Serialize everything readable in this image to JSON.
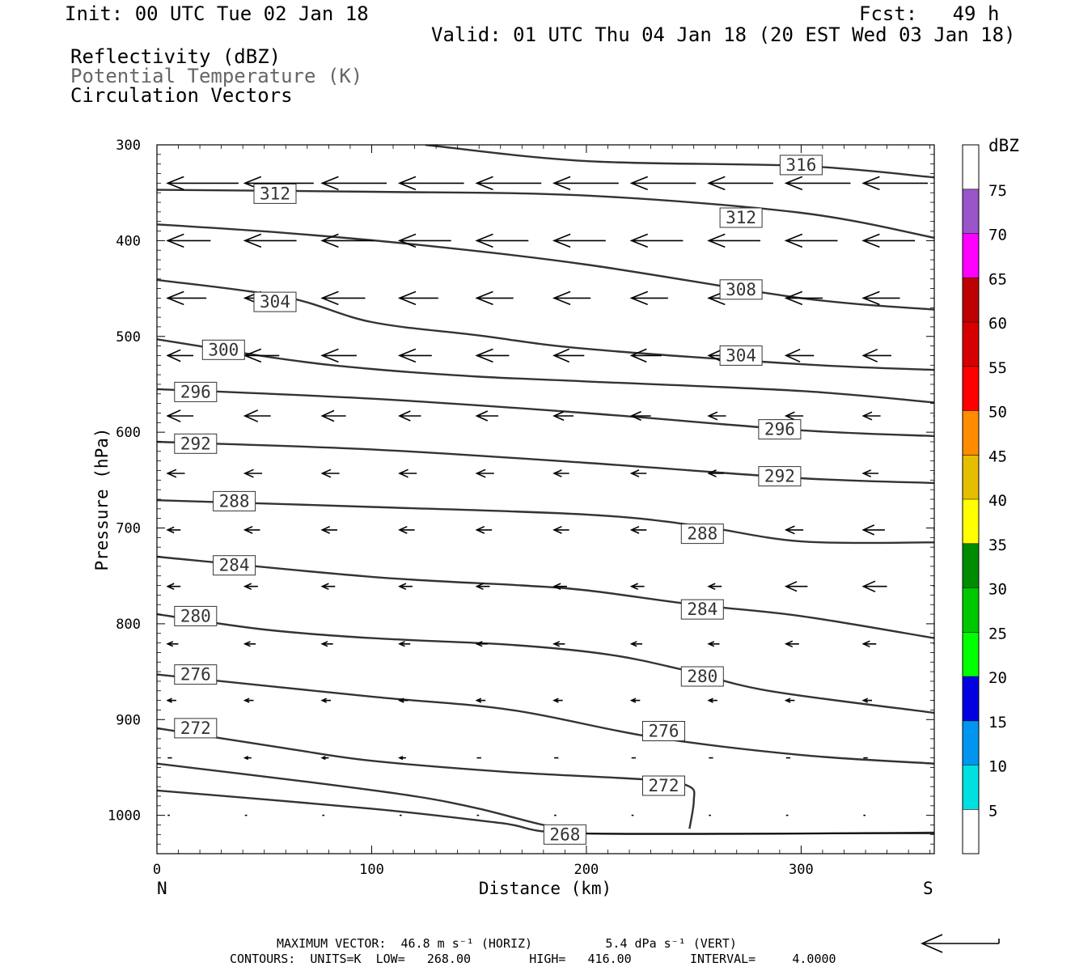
{
  "header": {
    "init": "Init: 00 UTC Tue 02 Jan 18",
    "fcst": "Fcst:   49 h",
    "valid": "Valid: 01 UTC Thu 04 Jan 18 (20 EST Wed 03 Jan 18)",
    "field1": "Reflectivity (dBZ)",
    "field2": "Potential Temperature (K)",
    "field3": "Circulation Vectors"
  },
  "footer": {
    "maxvec": "MAXIMUM VECTOR:  46.8 m s⁻¹ (HORIZ)          5.4 dPa s⁻¹ (VERT)",
    "contours": "CONTOURS:  UNITS=K  LOW=   268.00        HIGH=   416.00        INTERVAL=     4.0000"
  },
  "chart_data": {
    "type": "line",
    "title": "",
    "xlabel": "Distance (km)",
    "ylabel": "Pressure (hPa)",
    "xlim": [
      0,
      362
    ],
    "ylim": [
      300,
      1040
    ],
    "x_ticks": [
      0,
      100,
      200,
      300
    ],
    "y_ticks": [
      300,
      400,
      500,
      600,
      700,
      800,
      900,
      1000
    ],
    "x_end_labels": {
      "left": "N",
      "right": "S"
    },
    "colorbar": {
      "title": "dBZ",
      "levels": [
        5,
        10,
        15,
        20,
        25,
        30,
        35,
        40,
        45,
        50,
        55,
        60,
        65,
        70,
        75
      ],
      "colors": [
        "#ffffff",
        "#00e0e0",
        "#0096f0",
        "#0000e0",
        "#00ff00",
        "#00c800",
        "#008c00",
        "#ffff00",
        "#e6be00",
        "#ff8c00",
        "#ff0000",
        "#d70000",
        "#bf0000",
        "#ff00ff",
        "#9955c9",
        "#ffffff"
      ]
    },
    "contour_color": "#333333",
    "series": [
      {
        "level": 316,
        "points": [
          [
            125,
            300
          ],
          [
            200,
            317
          ],
          [
            300,
            322
          ],
          [
            362,
            334
          ]
        ],
        "label": "316",
        "label_at": [
          300,
          321
        ]
      },
      {
        "level": 312,
        "points": [
          [
            0,
            347
          ],
          [
            100,
            349
          ],
          [
            200,
            353
          ],
          [
            300,
            371
          ],
          [
            362,
            397
          ]
        ],
        "label": "312",
        "label_at": [
          272,
          376
        ]
      },
      {
        "level": 308,
        "points": [
          [
            0,
            383
          ],
          [
            60,
            392
          ],
          [
            120,
            404
          ],
          [
            200,
            425
          ],
          [
            300,
            460
          ],
          [
            362,
            472
          ]
        ],
        "label": "308",
        "label_at": [
          272,
          451
        ]
      },
      {
        "level": 304,
        "points": [
          [
            0,
            441
          ],
          [
            60,
            459
          ],
          [
            100,
            485
          ],
          [
            150,
            499
          ],
          [
            200,
            513
          ],
          [
            300,
            529
          ],
          [
            362,
            535
          ]
        ],
        "label": "304",
        "label_at": [
          272,
          520
        ]
      },
      {
        "level": 300,
        "points": [
          [
            0,
            503
          ],
          [
            60,
            524
          ],
          [
            100,
            534
          ],
          [
            150,
            542
          ],
          [
            200,
            547
          ],
          [
            300,
            557
          ],
          [
            362,
            569
          ]
        ]
      },
      {
        "level": 296,
        "points": [
          [
            0,
            555
          ],
          [
            100,
            565
          ],
          [
            200,
            580
          ],
          [
            300,
            598
          ],
          [
            362,
            604
          ]
        ],
        "label": "296",
        "label_at": [
          290,
          597
        ]
      },
      {
        "level": 292,
        "points": [
          [
            0,
            610
          ],
          [
            100,
            618
          ],
          [
            200,
            632
          ],
          [
            300,
            648
          ],
          [
            362,
            653
          ]
        ],
        "label": "292",
        "label_at": [
          290,
          646
        ]
      },
      {
        "level": 288,
        "points": [
          [
            0,
            671
          ],
          [
            100,
            678
          ],
          [
            200,
            686
          ],
          [
            250,
            697
          ],
          [
            300,
            714
          ],
          [
            362,
            715
          ]
        ],
        "label": "288",
        "label_at": [
          254,
          706
        ]
      },
      {
        "level": 284,
        "points": [
          [
            0,
            730
          ],
          [
            100,
            751
          ],
          [
            170,
            760
          ],
          [
            200,
            765
          ],
          [
            250,
            780
          ],
          [
            300,
            792
          ],
          [
            362,
            815
          ]
        ],
        "label": "284",
        "label_at": [
          254,
          785
        ]
      },
      {
        "level": 280,
        "points": [
          [
            0,
            790
          ],
          [
            50,
            806
          ],
          [
            100,
            815
          ],
          [
            165,
            822
          ],
          [
            210,
            832
          ],
          [
            245,
            848
          ],
          [
            285,
            870
          ],
          [
            362,
            893
          ]
        ],
        "label": "280",
        "label_at": [
          254,
          855
        ]
      },
      {
        "level": 276,
        "points": [
          [
            0,
            853
          ],
          [
            100,
            876
          ],
          [
            165,
            890
          ],
          [
            230,
            918
          ],
          [
            300,
            937
          ],
          [
            362,
            946
          ]
        ],
        "label": "276",
        "label_at": [
          236,
          912
        ]
      },
      {
        "level": 272,
        "points": [
          [
            0,
            909
          ],
          [
            60,
            930
          ],
          [
            100,
            943
          ],
          [
            165,
            955
          ],
          [
            230,
            963
          ],
          [
            248,
            970
          ],
          [
            250,
            985
          ],
          [
            248,
            1014
          ]
        ],
        "label": "272",
        "label_at": [
          236,
          969
        ]
      },
      {
        "level": 268,
        "points": [
          [
            0,
            974
          ],
          [
            100,
            993
          ],
          [
            160,
            1008
          ],
          [
            200,
            1019
          ],
          [
            362,
            1018
          ]
        ],
        "label": "268",
        "label_at": [
          190,
          1020
        ]
      }
    ],
    "extra_contour": {
      "points": [
        [
          0,
          946
        ],
        [
          70,
          965
        ],
        [
          120,
          980
        ],
        [
          150,
          993
        ],
        [
          180,
          1010
        ],
        [
          200,
          1017
        ]
      ]
    },
    "thin_contour": {
      "points": [
        [
          200,
          1019
        ],
        [
          362,
          1019
        ]
      ]
    },
    "inline_labels": [
      {
        "text": "312",
        "at": [
          55,
          351
        ]
      },
      {
        "text": "304",
        "at": [
          55,
          464
        ]
      },
      {
        "text": "300",
        "at": [
          31,
          514
        ]
      },
      {
        "text": "296",
        "at": [
          18,
          558
        ]
      },
      {
        "text": "292",
        "at": [
          18,
          612
        ]
      },
      {
        "text": "288",
        "at": [
          36,
          672
        ]
      },
      {
        "text": "284",
        "at": [
          36,
          739
        ]
      },
      {
        "text": "280",
        "at": [
          18,
          792
        ]
      },
      {
        "text": "276",
        "at": [
          18,
          853
        ]
      },
      {
        "text": "272",
        "at": [
          18,
          909
        ]
      }
    ],
    "vectors": {
      "pressure_levels": [
        340,
        400,
        460,
        520,
        583,
        643,
        702,
        761,
        821,
        880,
        940,
        1000
      ],
      "x_positions": [
        5,
        41,
        77,
        113,
        149,
        185,
        221,
        257,
        293,
        329,
        362
      ],
      "lengths_km": [
        [
          33,
          32,
          30,
          30,
          30,
          30,
          30,
          30,
          30,
          30,
          35
        ],
        [
          20,
          24,
          24,
          24,
          24,
          24,
          24,
          24,
          24,
          24,
          22
        ],
        [
          18,
          20,
          20,
          18,
          17,
          17,
          17,
          17,
          17,
          17,
          12
        ],
        [
          12,
          16,
          16,
          15,
          15,
          14,
          14,
          13,
          13,
          13,
          10
        ],
        [
          12,
          12,
          11,
          10,
          10,
          9,
          9,
          8,
          8,
          8,
          6
        ],
        [
          8,
          8,
          8,
          8,
          8,
          7,
          7,
          7,
          7,
          7,
          6
        ],
        [
          6,
          7,
          7,
          7,
          7,
          7,
          7,
          6,
          8,
          10,
          10
        ],
        [
          6,
          6,
          6,
          6,
          6,
          6,
          6,
          6,
          10,
          11,
          11
        ],
        [
          5,
          5,
          5,
          5,
          5,
          5,
          5,
          5,
          6,
          6,
          6
        ],
        [
          4,
          4,
          4,
          4,
          4,
          4,
          4,
          4,
          4,
          4,
          4
        ],
        [
          2,
          3,
          3,
          3,
          2,
          2,
          2,
          2,
          2,
          2,
          2
        ],
        [
          1,
          1,
          1,
          1,
          1,
          1,
          1,
          1,
          1,
          1,
          1
        ]
      ],
      "reference_vector": "46.8 m/s"
    }
  }
}
